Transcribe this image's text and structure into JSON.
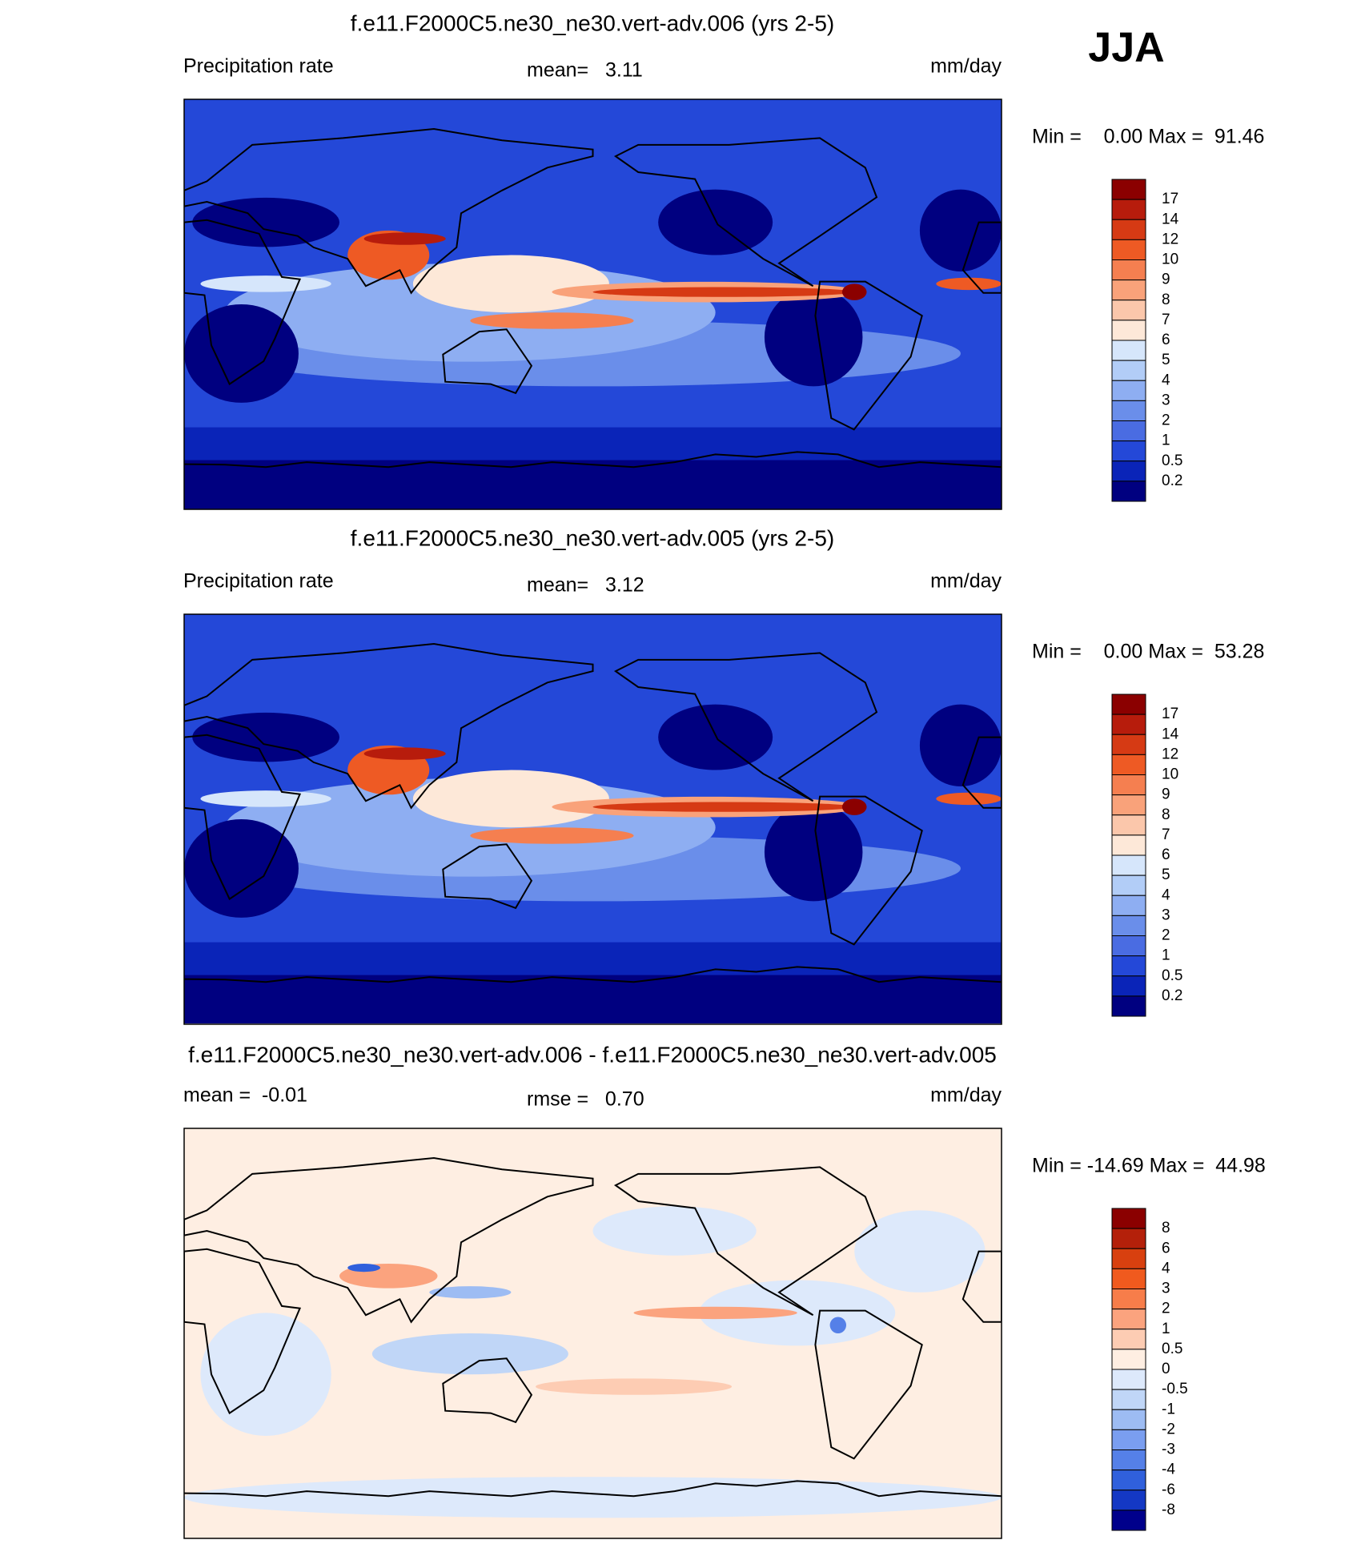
{
  "season": "JJA",
  "panels": [
    {
      "title": "f.e11.F2000C5.ne30_ne30.vert-adv.006 (yrs 2-5)",
      "left_label": "Precipitation rate",
      "center_label": "mean=   3.11",
      "right_label": "mm/day",
      "minmax": "Min =    0.00 Max =  91.46",
      "colorbar_labels": [
        "17",
        "14",
        "12",
        "10",
        "9",
        "8",
        "7",
        "6",
        "5",
        "4",
        "3",
        "2",
        "1",
        "0.5",
        "0.2"
      ],
      "colorbar_colors": [
        "#8b0000",
        "#b71c0c",
        "#d63a14",
        "#ee5a24",
        "#f57f50",
        "#f9a27a",
        "#fbc7ab",
        "#fde8d8",
        "#d6e6fb",
        "#b2cdf7",
        "#8eaef2",
        "#6a8eea",
        "#4a6ce2",
        "#2448d8",
        "#0a24b8",
        "#000080"
      ]
    },
    {
      "title": "f.e11.F2000C5.ne30_ne30.vert-adv.005 (yrs 2-5)",
      "left_label": "Precipitation rate",
      "center_label": "mean=   3.12",
      "right_label": "mm/day",
      "minmax": "Min =    0.00 Max =  53.28",
      "colorbar_labels": [
        "17",
        "14",
        "12",
        "10",
        "9",
        "8",
        "7",
        "6",
        "5",
        "4",
        "3",
        "2",
        "1",
        "0.5",
        "0.2"
      ],
      "colorbar_colors": [
        "#8b0000",
        "#b71c0c",
        "#d63a14",
        "#ee5a24",
        "#f57f50",
        "#f9a27a",
        "#fbc7ab",
        "#fde8d8",
        "#d6e6fb",
        "#b2cdf7",
        "#8eaef2",
        "#6a8eea",
        "#4a6ce2",
        "#2448d8",
        "#0a24b8",
        "#000080"
      ]
    },
    {
      "title": "f.e11.F2000C5.ne30_ne30.vert-adv.006 - f.e11.F2000C5.ne30_ne30.vert-adv.005",
      "left_label": "mean =  -0.01",
      "center_label": "rmse =   0.70",
      "right_label": "mm/day",
      "minmax": "Min = -14.69 Max =  44.98",
      "colorbar_labels": [
        "8",
        "6",
        "4",
        "3",
        "2",
        "1",
        "0.5",
        "0",
        "-0.5",
        "-1",
        "-2",
        "-3",
        "-4",
        "-6",
        "-8"
      ],
      "colorbar_colors": [
        "#8b0000",
        "#b4200a",
        "#d8400f",
        "#f05a1e",
        "#f77d4a",
        "#fba37e",
        "#fdccb3",
        "#feeee2",
        "#dde9fb",
        "#c0d6f7",
        "#9dbcf3",
        "#7a9ef0",
        "#5580e8",
        "#3060dc",
        "#1438c4",
        "#00008b"
      ]
    }
  ]
}
